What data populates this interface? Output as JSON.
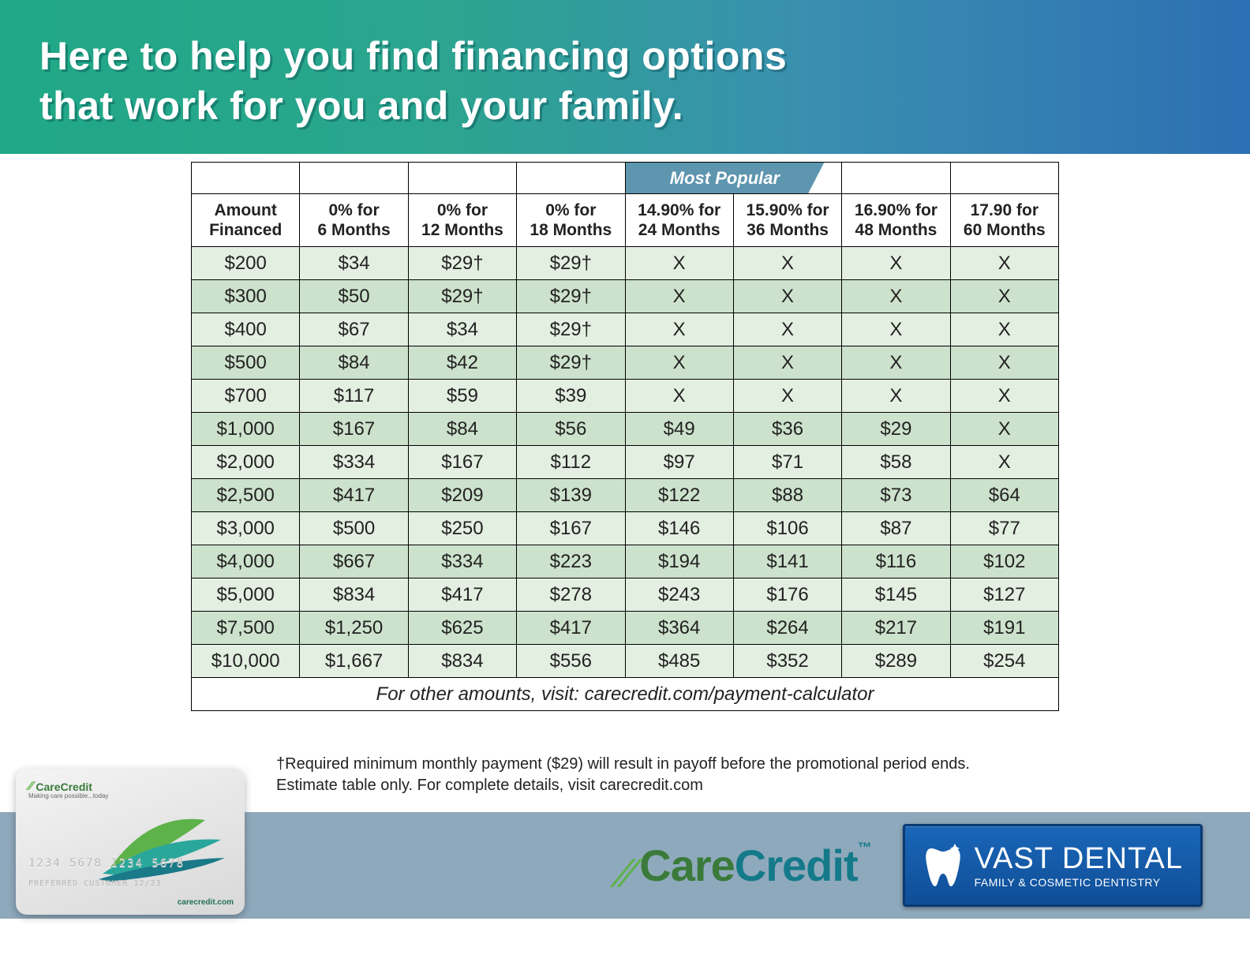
{
  "header": {
    "headline_line1": "Here to help you find financing options",
    "headline_line2": "that work for you and your family."
  },
  "table": {
    "popular_label": "Most Popular",
    "popular_col_start": 4,
    "popular_col_span": 2,
    "columns": [
      {
        "l1": "Amount",
        "l2": "Financed"
      },
      {
        "l1": "0% for",
        "l2": "6 Months"
      },
      {
        "l1": "0% for",
        "l2": "12 Months"
      },
      {
        "l1": "0% for",
        "l2": "18 Months"
      },
      {
        "l1": "14.90% for",
        "l2": "24 Months"
      },
      {
        "l1": "15.90% for",
        "l2": "36 Months"
      },
      {
        "l1": "16.90% for",
        "l2": "48 Months"
      },
      {
        "l1": "17.90 for",
        "l2": "60 Months"
      }
    ],
    "rows": [
      [
        "$200",
        "$34",
        "$29†",
        "$29†",
        "X",
        "X",
        "X",
        "X"
      ],
      [
        "$300",
        "$50",
        "$29†",
        "$29†",
        "X",
        "X",
        "X",
        "X"
      ],
      [
        "$400",
        "$67",
        "$34",
        "$29†",
        "X",
        "X",
        "X",
        "X"
      ],
      [
        "$500",
        "$84",
        "$42",
        "$29†",
        "X",
        "X",
        "X",
        "X"
      ],
      [
        "$700",
        "$117",
        "$59",
        "$39",
        "X",
        "X",
        "X",
        "X"
      ],
      [
        "$1,000",
        "$167",
        "$84",
        "$56",
        "$49",
        "$36",
        "$29",
        "X"
      ],
      [
        "$2,000",
        "$334",
        "$167",
        "$112",
        "$97",
        "$71",
        "$58",
        "X"
      ],
      [
        "$2,500",
        "$417",
        "$209",
        "$139",
        "$122",
        "$88",
        "$73",
        "$64"
      ],
      [
        "$3,000",
        "$500",
        "$250",
        "$167",
        "$146",
        "$106",
        "$87",
        "$77"
      ],
      [
        "$4,000",
        "$667",
        "$334",
        "$223",
        "$194",
        "$141",
        "$116",
        "$102"
      ],
      [
        "$5,000",
        "$834",
        "$417",
        "$278",
        "$243",
        "$176",
        "$145",
        "$127"
      ],
      [
        "$7,500",
        "$1,250",
        "$625",
        "$417",
        "$364",
        "$264",
        "$217",
        "$191"
      ],
      [
        "$10,000",
        "$1,667",
        "$834",
        "$556",
        "$485",
        "$352",
        "$289",
        "$254"
      ]
    ],
    "footer_text": "For other amounts, visit: carecredit.com/payment-calculator",
    "row_colors": {
      "odd": "#e3efe1",
      "even": "#cde2cc"
    },
    "border_color": "#000000",
    "popular_bg": "#5e95af"
  },
  "footnote": "†Required minimum monthly payment ($29) will result in payoff before the promotional period ends. Estimate table only. For complete details, visit carecredit.com",
  "card": {
    "brand": "CareCredit",
    "tagline": "Making care possible...today",
    "number": "1234 5678 1234 5678",
    "name_line": "PREFERRED CUSTOMER   12/23",
    "url": "carecredit.com"
  },
  "logos": {
    "carecredit_care": "Care",
    "carecredit_credit": "Credit",
    "vast_name": "VAST DENTAL",
    "vast_sub": "FAMILY & COSMETIC DENTISTRY"
  },
  "colors": {
    "header_gradient_from": "#20a886",
    "header_gradient_to": "#2d6fb3",
    "bottom_band": "#8fa9bc",
    "carecredit_green": "#5db24a",
    "carecredit_dark_green": "#3a7a3a",
    "carecredit_teal": "#147a8a",
    "vast_blue_top": "#1a66b8",
    "vast_blue_bottom": "#0f4e97"
  }
}
